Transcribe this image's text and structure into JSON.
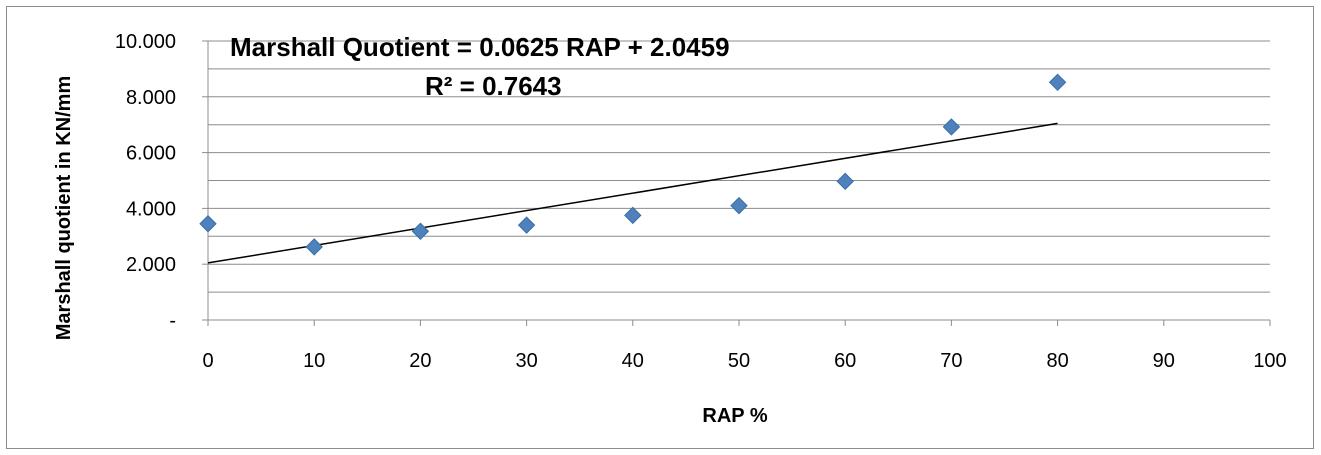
{
  "chart_data": {
    "type": "scatter",
    "xlabel": "RAP %",
    "ylabel": "Marshall quotient in KN/mm",
    "xlim": [
      0,
      100
    ],
    "ylim": [
      0,
      10
    ],
    "x_ticks": [
      0,
      10,
      20,
      30,
      40,
      50,
      60,
      70,
      80,
      90,
      100
    ],
    "x_tick_labels": [
      "0",
      "10",
      "20",
      "30",
      "40",
      "50",
      "60",
      "70",
      "80",
      "90",
      "100"
    ],
    "y_ticks": [
      0,
      2,
      4,
      6,
      8,
      10
    ],
    "y_tick_labels": [
      "-",
      "2.000",
      "4.000",
      "6.000",
      "8.000",
      "10.000"
    ],
    "grid": "horizontal, major and minor",
    "legend": "none",
    "series": [
      {
        "x": [
          0,
          10,
          20,
          30,
          40,
          50,
          60,
          70,
          80
        ],
        "y": [
          3.45,
          2.62,
          3.18,
          3.4,
          3.75,
          4.1,
          4.97,
          6.92,
          8.52
        ],
        "marker": "diamond",
        "color": "#4f81bd"
      }
    ],
    "trendline": {
      "type": "linear",
      "slope": 0.0625,
      "intercept": 2.0459,
      "x_range": [
        0,
        80
      ],
      "color": "#000000"
    },
    "annotations": {
      "equation": "Marshall Quotient = 0.0625 RAP + 2.0459",
      "r_squared": "R² = 0.7643"
    }
  }
}
